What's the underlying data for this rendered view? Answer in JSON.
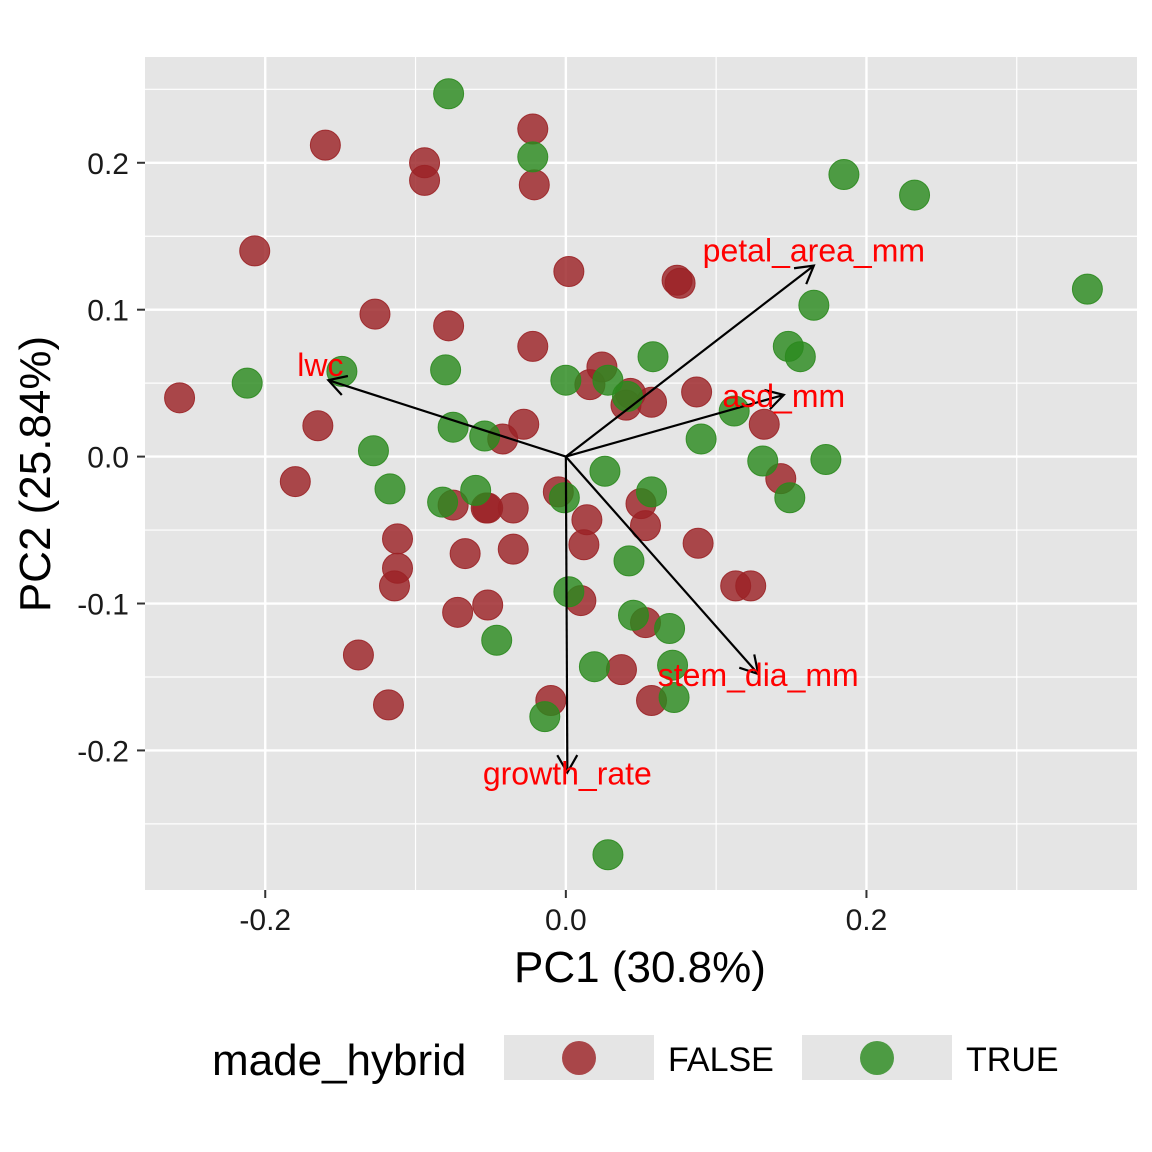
{
  "chart_data": {
    "type": "scatter",
    "title": "",
    "xlabel": "PC1 (30.8%)",
    "ylabel": "PC2 (25.84%)",
    "xlim": [
      -0.28,
      0.38
    ],
    "ylim": [
      -0.295,
      0.272
    ],
    "x_ticks": [
      -0.2,
      0.0,
      0.2
    ],
    "x_tick_labels": [
      "-0.2",
      "0.0",
      "0.2"
    ],
    "y_ticks": [
      -0.2,
      -0.1,
      0.0,
      0.1,
      0.2
    ],
    "y_tick_labels": [
      "-0.2",
      "-0.1",
      "0.0",
      "0.1",
      "0.2"
    ],
    "grid": true,
    "legend": {
      "position": "bottom",
      "title": "made_hybrid",
      "entries": [
        {
          "label": "FALSE",
          "color": "#9b2226"
        },
        {
          "label": "TRUE",
          "color": "#2b8a1e"
        }
      ]
    },
    "colors": {
      "panel_bg": "#e5e5e5",
      "grid": "#ffffff",
      "false_point": "#9b2226",
      "true_point": "#2b8a1e",
      "arrow": "#000000",
      "arrow_label": "#ff0000"
    },
    "series": [
      {
        "name": "FALSE",
        "points": [
          [
            -0.257,
            0.04
          ],
          [
            -0.207,
            0.14
          ],
          [
            -0.18,
            -0.017
          ],
          [
            -0.16,
            0.212
          ],
          [
            -0.165,
            0.021
          ],
          [
            -0.138,
            -0.135
          ],
          [
            -0.127,
            0.097
          ],
          [
            -0.118,
            -0.169
          ],
          [
            -0.112,
            -0.056
          ],
          [
            -0.112,
            -0.076
          ],
          [
            -0.114,
            -0.088
          ],
          [
            -0.094,
            0.2
          ],
          [
            -0.094,
            0.188
          ],
          [
            -0.078,
            0.089
          ],
          [
            -0.075,
            -0.033
          ],
          [
            -0.072,
            -0.106
          ],
          [
            -0.067,
            -0.066
          ],
          [
            -0.053,
            -0.035
          ],
          [
            -0.052,
            -0.035
          ],
          [
            -0.052,
            -0.101
          ],
          [
            -0.042,
            0.012
          ],
          [
            -0.035,
            -0.035
          ],
          [
            -0.035,
            -0.063
          ],
          [
            -0.028,
            0.022
          ],
          [
            -0.022,
            0.075
          ],
          [
            -0.022,
            0.223
          ],
          [
            -0.021,
            0.185
          ],
          [
            -0.01,
            -0.166
          ],
          [
            -0.005,
            -0.024
          ],
          [
            0.002,
            0.126
          ],
          [
            0.01,
            -0.098
          ],
          [
            0.012,
            -0.06
          ],
          [
            0.014,
            -0.043
          ],
          [
            0.016,
            0.049
          ],
          [
            0.024,
            0.061
          ],
          [
            0.037,
            -0.145
          ],
          [
            0.04,
            0.035
          ],
          [
            0.043,
            0.043
          ],
          [
            0.05,
            -0.032
          ],
          [
            0.053,
            -0.113
          ],
          [
            0.053,
            -0.047
          ],
          [
            0.057,
            0.037
          ],
          [
            0.057,
            -0.166
          ],
          [
            0.074,
            0.12
          ],
          [
            0.076,
            0.118
          ],
          [
            0.087,
            0.044
          ],
          [
            0.088,
            -0.059
          ],
          [
            0.113,
            -0.088
          ],
          [
            0.123,
            -0.088
          ],
          [
            0.132,
            0.022
          ],
          [
            0.143,
            -0.015
          ]
        ]
      },
      {
        "name": "TRUE",
        "points": [
          [
            -0.212,
            0.05
          ],
          [
            -0.149,
            0.058
          ],
          [
            -0.128,
            0.004
          ],
          [
            -0.117,
            -0.022
          ],
          [
            -0.082,
            -0.031
          ],
          [
            -0.08,
            0.059
          ],
          [
            -0.078,
            0.247
          ],
          [
            -0.075,
            0.02
          ],
          [
            -0.06,
            -0.023
          ],
          [
            -0.054,
            0.014
          ],
          [
            -0.046,
            -0.125
          ],
          [
            -0.022,
            0.204
          ],
          [
            -0.001,
            -0.028
          ],
          [
            0.0,
            0.052
          ],
          [
            0.002,
            -0.092
          ],
          [
            -0.014,
            -0.177
          ],
          [
            0.026,
            -0.01
          ],
          [
            0.028,
            -0.271
          ],
          [
            0.028,
            0.052
          ],
          [
            0.019,
            -0.143
          ],
          [
            0.041,
            0.041
          ],
          [
            0.042,
            -0.071
          ],
          [
            0.045,
            -0.108
          ],
          [
            0.057,
            -0.024
          ],
          [
            0.058,
            0.068
          ],
          [
            0.069,
            -0.117
          ],
          [
            0.071,
            -0.142
          ],
          [
            0.072,
            -0.164
          ],
          [
            0.09,
            0.012
          ],
          [
            0.112,
            0.031
          ],
          [
            0.131,
            -0.003
          ],
          [
            0.148,
            0.075
          ],
          [
            0.149,
            -0.028
          ],
          [
            0.156,
            0.068
          ],
          [
            0.165,
            0.103
          ],
          [
            0.173,
            -0.002
          ],
          [
            0.185,
            0.192
          ],
          [
            0.232,
            0.178
          ],
          [
            0.347,
            0.114
          ]
        ]
      }
    ],
    "loadings": [
      {
        "label": "lwc",
        "x": -0.158,
        "y": 0.052
      },
      {
        "label": "petal_area_mm",
        "x": 0.165,
        "y": 0.13
      },
      {
        "label": "asd_mm",
        "x": 0.145,
        "y": 0.042
      },
      {
        "label": "stem_dia_mm",
        "x": 0.128,
        "y": -0.148
      },
      {
        "label": "growth_rate",
        "x": 0.001,
        "y": -0.215
      }
    ]
  }
}
